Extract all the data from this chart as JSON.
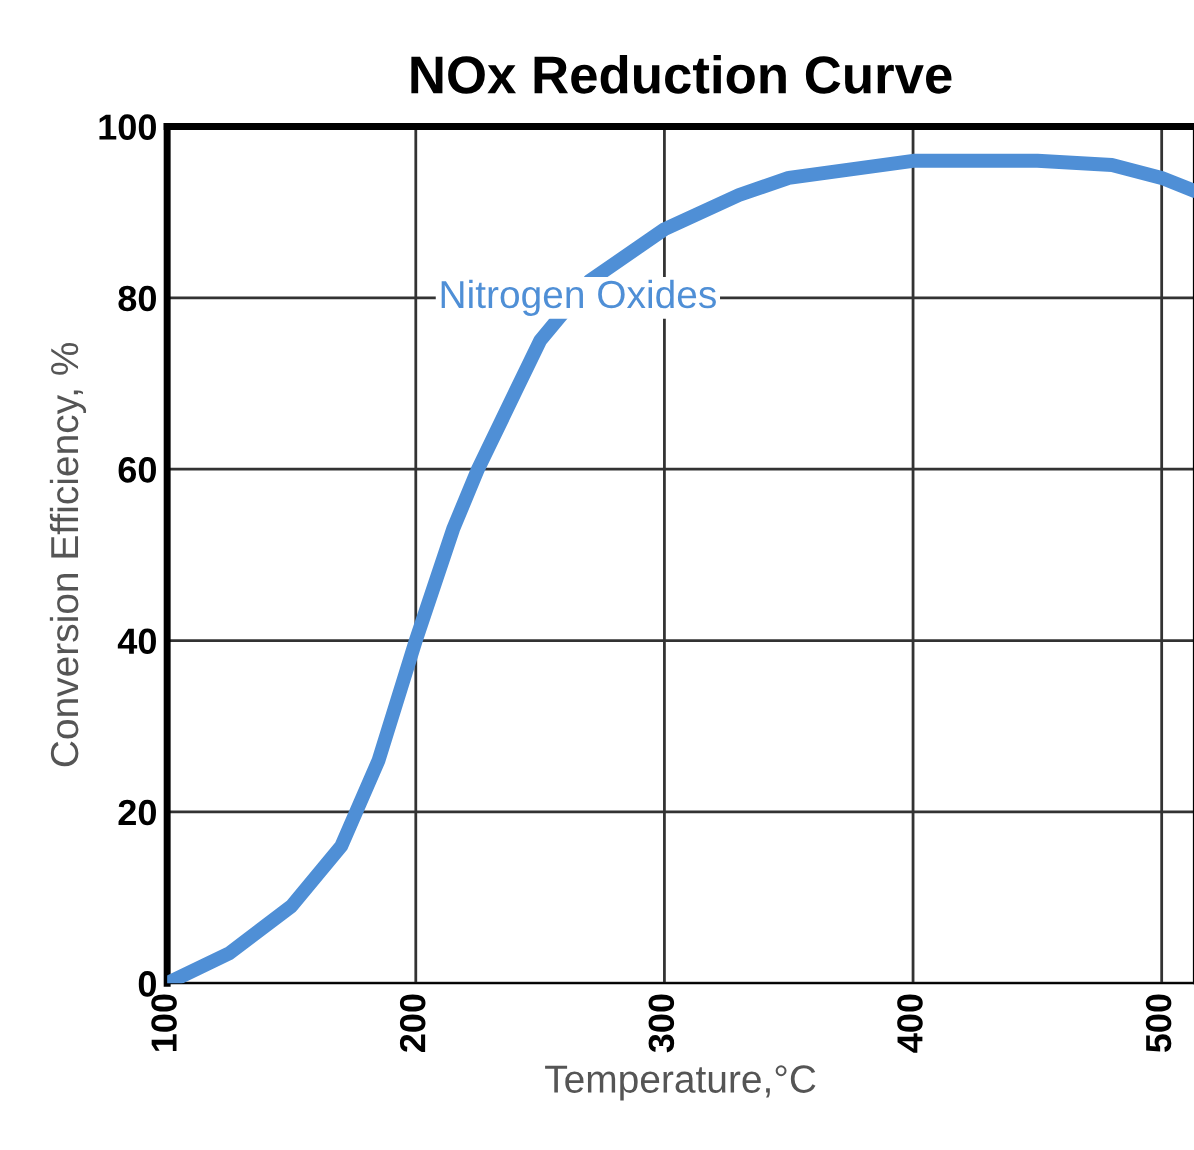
{
  "chart_data": {
    "type": "line",
    "title": "NOx Reduction Curve",
    "xlabel": "Temperature,°C",
    "ylabel": "Conversion Efficiency, %",
    "x": [
      100,
      125,
      150,
      170,
      185,
      200,
      215,
      225,
      240,
      250,
      270,
      300,
      330,
      350,
      400,
      450,
      480,
      500,
      513
    ],
    "series": [
      {
        "color": "#4f8fd6",
        "values": [
          0,
          3.5,
          9,
          16,
          26,
          40,
          53,
          60,
          69,
          75,
          82,
          88,
          92,
          94,
          96,
          96,
          95.5,
          94,
          92.5
        ]
      }
    ],
    "annotations": [
      "Nitrogen Oxides"
    ],
    "xlim": [
      100,
      513
    ],
    "ylim": [
      0,
      100
    ],
    "xticks": [
      100,
      200,
      300,
      400,
      500
    ],
    "yticks": [
      0,
      20,
      40,
      60,
      80,
      100
    ],
    "grid": true,
    "marker": "none",
    "line_style": "solid"
  }
}
